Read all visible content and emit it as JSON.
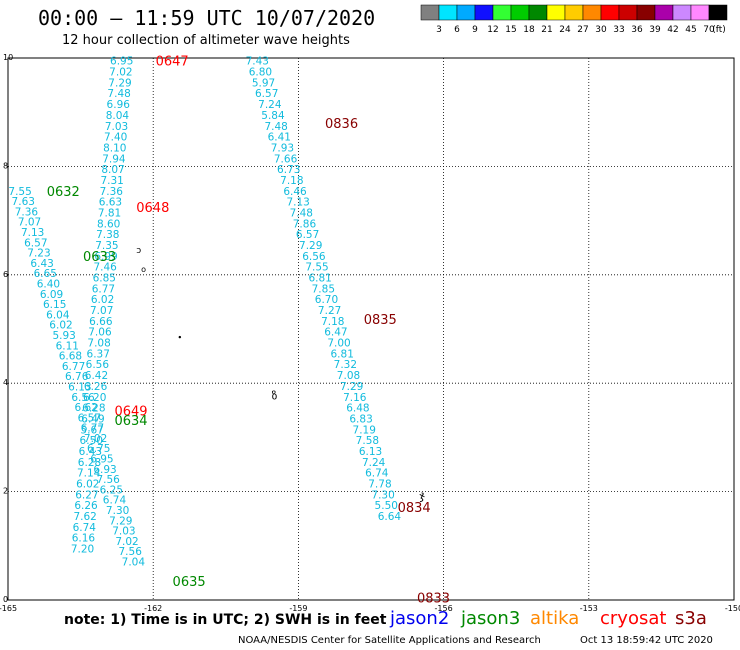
{
  "header": {
    "title": "00:00 – 11:59 UTC 10/07/2020",
    "subtitle": "12 hour collection of altimeter wave heights"
  },
  "colorbar": {
    "unit": "(ft)",
    "bins": [
      {
        "label": "3",
        "color": "#808080"
      },
      {
        "label": "6",
        "color": "#00e5ff"
      },
      {
        "label": "9",
        "color": "#00aaff"
      },
      {
        "label": "12",
        "color": "#1010ff"
      },
      {
        "label": "15",
        "color": "#33ff33"
      },
      {
        "label": "18",
        "color": "#00cc00"
      },
      {
        "label": "21",
        "color": "#008800"
      },
      {
        "label": "24",
        "color": "#ffff00"
      },
      {
        "label": "27",
        "color": "#ffcc00"
      },
      {
        "label": "30",
        "color": "#ff8800"
      },
      {
        "label": "33",
        "color": "#ff0000"
      },
      {
        "label": "36",
        "color": "#cc0000"
      },
      {
        "label": "39",
        "color": "#880000"
      },
      {
        "label": "42",
        "color": "#aa00aa"
      },
      {
        "label": "45",
        "color": "#cc88ff"
      },
      {
        "label": "70",
        "color": "#ff88ff"
      },
      {
        "label": "",
        "color": "#000000"
      }
    ]
  },
  "chart_data": {
    "type": "scatter",
    "title": "12 hour collection of altimeter wave heights",
    "xlabel": "",
    "ylabel": "",
    "xlim": [
      -165,
      -150
    ],
    "ylim": [
      0,
      10
    ],
    "x_ticks": [
      "-165",
      "-162",
      "-159",
      "-156",
      "-153",
      "-150"
    ],
    "y_ticks": [
      "0",
      "2",
      "4",
      "6",
      "8",
      "10"
    ],
    "grid": true,
    "track_color": "#11bbdd",
    "tracks": [
      {
        "name": "left-track-a",
        "x_start": -164.75,
        "y_start": 7.55,
        "x_step": 0.065,
        "y_step": -0.19,
        "values": [
          "7.55",
          "7.63",
          "7.36",
          "7.07",
          "7.13",
          "6.57",
          "7.23",
          "6.43",
          "6.65",
          "6.40",
          "6.09",
          "6.15",
          "6.04",
          "6.02",
          "5.93",
          "6.11",
          "6.68",
          "6.77",
          "6.76",
          "6.13",
          "6.56",
          "6.62",
          "6.57",
          "6.77",
          "7.02",
          "6.75",
          "6.95",
          "6.93",
          "7.56",
          "6.25",
          "6.74",
          "7.30",
          "7.29",
          "7.03",
          "7.02",
          "7.56",
          "7.04"
        ]
      },
      {
        "name": "left-track-b",
        "x_start": -162.65,
        "y_start": 9.95,
        "x_step": -0.018,
        "y_step": -0.2,
        "values": [
          "6.95",
          "7.02",
          "7.29",
          "7.48",
          "6.96",
          "8.04",
          "7.03",
          "7.40",
          "8.10",
          "7.94",
          "8.07",
          "7.31",
          "7.36",
          "6.63",
          "7.81",
          "8.60",
          "7.38",
          "7.35",
          "6.99",
          "7.46",
          "6.85",
          "6.77",
          "6.02",
          "7.07",
          "6.66",
          "7.06",
          "7.08",
          "6.37",
          "6.56",
          "6.42",
          "6.26",
          "6.20",
          "6.28",
          "6.49",
          "5.67",
          "6.50",
          "6.43",
          "6.28",
          "7.14",
          "6.02",
          "6.27",
          "6.26",
          "7.62",
          "6.74",
          "6.16",
          "7.20"
        ]
      },
      {
        "name": "right-track",
        "x_start": -159.85,
        "y_start": 9.95,
        "x_step": 0.065,
        "y_step": -0.2,
        "values": [
          "7.43",
          "6.80",
          "5.97",
          "6.57",
          "7.24",
          "5.84",
          "7.48",
          "6.41",
          "7.93",
          "7.66",
          "6.73",
          "7.18",
          "6.46",
          "7.13",
          "7.48",
          "7.86",
          "6.57",
          "7.29",
          "6.56",
          "7.55",
          "6.81",
          "7.85",
          "6.70",
          "7.27",
          "7.18",
          "6.47",
          "7.00",
          "6.81",
          "7.32",
          "7.08",
          "7.29",
          "7.16",
          "6.48",
          "6.83",
          "7.19",
          "7.58",
          "6.13",
          "7.24",
          "6.74",
          "7.78",
          "7.30",
          "5.50",
          "6.64"
        ]
      }
    ],
    "time_labels": [
      {
        "text": "0647",
        "x": -161.95,
        "y": 9.95,
        "sat": "cryosat"
      },
      {
        "text": "0836",
        "x": -158.45,
        "y": 8.8,
        "sat": "s3a"
      },
      {
        "text": "0632",
        "x": -164.2,
        "y": 7.55,
        "sat": "jason3"
      },
      {
        "text": "0648",
        "x": -162.35,
        "y": 7.25,
        "sat": "cryosat"
      },
      {
        "text": "0633",
        "x": -163.45,
        "y": 6.35,
        "sat": "jason3"
      },
      {
        "text": "0835",
        "x": -157.65,
        "y": 5.18,
        "sat": "s3a"
      },
      {
        "text": "0649",
        "x": -162.8,
        "y": 3.5,
        "sat": "cryosat"
      },
      {
        "text": "0634",
        "x": -162.8,
        "y": 3.32,
        "sat": "jason3"
      },
      {
        "text": "0834",
        "x": -156.95,
        "y": 1.72,
        "sat": "s3a"
      },
      {
        "text": "0635",
        "x": -161.6,
        "y": 0.35,
        "sat": "jason3"
      },
      {
        "text": "0833",
        "x": -156.55,
        "y": 0.05,
        "sat": "s3a"
      }
    ]
  },
  "legend": {
    "note": "note: 1) Time is in UTC; 2) SWH is in feet",
    "satellites": [
      {
        "name": "jason2",
        "color": "#0000ee"
      },
      {
        "name": "jason3",
        "color": "#008800"
      },
      {
        "name": "altika",
        "color": "#ff8800"
      },
      {
        "name": "cryosat",
        "color": "#ff0000"
      },
      {
        "name": "s3a",
        "color": "#880000"
      }
    ]
  },
  "footer": {
    "credit": "NOAA/NESDIS Center for Satellite Applications and Research",
    "timestamp": "Oct 13 18:59:42 UTC 2020"
  }
}
